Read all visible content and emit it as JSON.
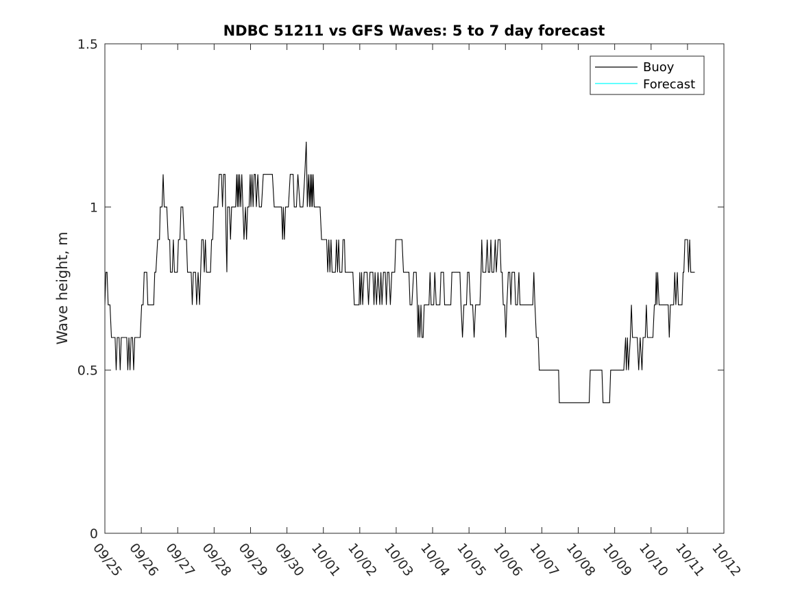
{
  "chart_data": {
    "type": "line",
    "title": "NDBC 51211 vs GFS Waves: 5 to 7 day forecast",
    "xlabel": "",
    "ylabel": "Wave height, m",
    "xlim": [
      0,
      17
    ],
    "ylim": [
      0,
      1.5
    ],
    "x_tick_labels": [
      "09/25",
      "09/26",
      "09/27",
      "09/28",
      "09/29",
      "09/30",
      "10/01",
      "10/02",
      "10/03",
      "10/04",
      "10/05",
      "10/06",
      "10/07",
      "10/08",
      "10/09",
      "10/10",
      "10/11",
      "10/12"
    ],
    "y_ticks": [
      0,
      0.5,
      1,
      1.5
    ],
    "y_tick_labels": [
      "0",
      "0.5",
      "1",
      "1.5"
    ],
    "legend_position": "top-right",
    "series": [
      {
        "name": "Buoy",
        "color": "#000000",
        "points": [
          [
            0.0,
            0.7
          ],
          [
            0.03,
            0.8
          ],
          [
            0.06,
            0.8
          ],
          [
            0.09,
            0.7
          ],
          [
            0.14,
            0.7
          ],
          [
            0.18,
            0.6
          ],
          [
            0.28,
            0.6
          ],
          [
            0.31,
            0.5
          ],
          [
            0.34,
            0.6
          ],
          [
            0.39,
            0.6
          ],
          [
            0.42,
            0.5
          ],
          [
            0.45,
            0.6
          ],
          [
            0.6,
            0.6
          ],
          [
            0.63,
            0.5
          ],
          [
            0.66,
            0.6
          ],
          [
            0.69,
            0.5
          ],
          [
            0.72,
            0.6
          ],
          [
            0.76,
            0.6
          ],
          [
            0.79,
            0.5
          ],
          [
            0.82,
            0.6
          ],
          [
            0.97,
            0.6
          ],
          [
            1.01,
            0.7
          ],
          [
            1.05,
            0.7
          ],
          [
            1.08,
            0.8
          ],
          [
            1.15,
            0.8
          ],
          [
            1.18,
            0.7
          ],
          [
            1.34,
            0.7
          ],
          [
            1.37,
            0.8
          ],
          [
            1.4,
            0.8
          ],
          [
            1.45,
            0.9
          ],
          [
            1.5,
            0.9
          ],
          [
            1.52,
            1.0
          ],
          [
            1.57,
            1.0
          ],
          [
            1.6,
            1.1
          ],
          [
            1.63,
            1.0
          ],
          [
            1.7,
            1.0
          ],
          [
            1.74,
            0.9
          ],
          [
            1.78,
            0.9
          ],
          [
            1.8,
            0.8
          ],
          [
            1.85,
            0.8
          ],
          [
            1.88,
            0.9
          ],
          [
            1.91,
            0.8
          ],
          [
            1.99,
            0.8
          ],
          [
            2.02,
            0.9
          ],
          [
            2.06,
            0.9
          ],
          [
            2.09,
            1.0
          ],
          [
            2.14,
            1.0
          ],
          [
            2.18,
            0.9
          ],
          [
            2.24,
            0.9
          ],
          [
            2.27,
            0.8
          ],
          [
            2.37,
            0.8
          ],
          [
            2.4,
            0.7
          ],
          [
            2.43,
            0.8
          ],
          [
            2.49,
            0.8
          ],
          [
            2.52,
            0.7
          ],
          [
            2.56,
            0.8
          ],
          [
            2.6,
            0.7
          ],
          [
            2.63,
            0.8
          ],
          [
            2.66,
            0.9
          ],
          [
            2.7,
            0.9
          ],
          [
            2.73,
            0.8
          ],
          [
            2.76,
            0.9
          ],
          [
            2.79,
            0.8
          ],
          [
            2.9,
            0.8
          ],
          [
            2.93,
            0.9
          ],
          [
            2.96,
            0.9
          ],
          [
            2.99,
            1.0
          ],
          [
            3.1,
            1.0
          ],
          [
            3.14,
            1.1
          ],
          [
            3.2,
            1.1
          ],
          [
            3.23,
            1.0
          ],
          [
            3.26,
            1.1
          ],
          [
            3.3,
            1.1
          ],
          [
            3.33,
            0.9
          ],
          [
            3.35,
            0.8
          ],
          [
            3.37,
            1.0
          ],
          [
            3.42,
            1.0
          ],
          [
            3.45,
            0.9
          ],
          [
            3.48,
            1.0
          ],
          [
            3.59,
            1.0
          ],
          [
            3.62,
            1.1
          ],
          [
            3.64,
            1.0
          ],
          [
            3.66,
            1.1
          ],
          [
            3.68,
            1.0
          ],
          [
            3.7,
            1.1
          ],
          [
            3.73,
            1.0
          ],
          [
            3.76,
            1.1
          ],
          [
            3.79,
            1.0
          ],
          [
            3.82,
            0.9
          ],
          [
            3.86,
            1.0
          ],
          [
            3.89,
            0.9
          ],
          [
            3.92,
            1.0
          ],
          [
            3.96,
            1.0
          ],
          [
            3.99,
            1.1
          ],
          [
            4.01,
            1.0
          ],
          [
            4.04,
            1.1
          ],
          [
            4.07,
            1.0
          ],
          [
            4.1,
            1.1
          ],
          [
            4.13,
            1.1
          ],
          [
            4.16,
            1.0
          ],
          [
            4.2,
            1.1
          ],
          [
            4.24,
            1.0
          ],
          [
            4.3,
            1.0
          ],
          [
            4.35,
            1.1
          ],
          [
            4.6,
            1.1
          ],
          [
            4.65,
            1.0
          ],
          [
            4.85,
            1.0
          ],
          [
            4.88,
            0.9
          ],
          [
            4.9,
            1.0
          ],
          [
            4.93,
            0.9
          ],
          [
            4.96,
            1.0
          ],
          [
            5.0,
            1.0
          ],
          [
            5.04,
            1.0
          ],
          [
            5.09,
            1.1
          ],
          [
            5.17,
            1.1
          ],
          [
            5.2,
            1.0
          ],
          [
            5.26,
            1.0
          ],
          [
            5.3,
            1.1
          ],
          [
            5.36,
            1.0
          ],
          [
            5.44,
            1.0
          ],
          [
            5.49,
            1.1
          ],
          [
            5.53,
            1.2
          ],
          [
            5.56,
            1.0
          ],
          [
            5.59,
            1.1
          ],
          [
            5.62,
            1.0
          ],
          [
            5.64,
            1.1
          ],
          [
            5.66,
            1.0
          ],
          [
            5.68,
            1.1
          ],
          [
            5.7,
            1.0
          ],
          [
            5.72,
            1.1
          ],
          [
            5.75,
            1.0
          ],
          [
            5.91,
            1.0
          ],
          [
            5.95,
            0.9
          ],
          [
            6.09,
            0.9
          ],
          [
            6.12,
            0.8
          ],
          [
            6.15,
            0.9
          ],
          [
            6.18,
            0.8
          ],
          [
            6.21,
            0.9
          ],
          [
            6.24,
            0.8
          ],
          [
            6.33,
            0.8
          ],
          [
            6.36,
            0.9
          ],
          [
            6.39,
            0.8
          ],
          [
            6.42,
            0.9
          ],
          [
            6.45,
            0.8
          ],
          [
            6.51,
            0.8
          ],
          [
            6.54,
            0.9
          ],
          [
            6.58,
            0.9
          ],
          [
            6.6,
            0.8
          ],
          [
            6.81,
            0.8
          ],
          [
            6.85,
            0.7
          ],
          [
            6.98,
            0.7
          ],
          [
            7.0,
            0.8
          ],
          [
            7.02,
            0.7
          ],
          [
            7.05,
            0.8
          ],
          [
            7.08,
            0.7
          ],
          [
            7.12,
            0.8
          ],
          [
            7.2,
            0.8
          ],
          [
            7.24,
            0.7
          ],
          [
            7.28,
            0.8
          ],
          [
            7.36,
            0.8
          ],
          [
            7.39,
            0.7
          ],
          [
            7.42,
            0.8
          ],
          [
            7.46,
            0.7
          ],
          [
            7.5,
            0.8
          ],
          [
            7.55,
            0.7
          ],
          [
            7.58,
            0.8
          ],
          [
            7.61,
            0.7
          ],
          [
            7.65,
            0.8
          ],
          [
            7.7,
            0.8
          ],
          [
            7.73,
            0.7
          ],
          [
            7.76,
            0.8
          ],
          [
            7.8,
            0.8
          ],
          [
            7.84,
            0.7
          ],
          [
            7.88,
            0.8
          ],
          [
            7.92,
            0.8
          ],
          [
            7.96,
            0.8
          ],
          [
            7.99,
            0.9
          ],
          [
            8.16,
            0.9
          ],
          [
            8.2,
            0.8
          ],
          [
            8.35,
            0.8
          ],
          [
            8.38,
            0.7
          ],
          [
            8.43,
            0.7
          ],
          [
            8.48,
            0.8
          ],
          [
            8.55,
            0.8
          ],
          [
            8.58,
            0.7
          ],
          [
            8.6,
            0.6
          ],
          [
            8.62,
            0.7
          ],
          [
            8.65,
            0.6
          ],
          [
            8.68,
            0.7
          ],
          [
            8.71,
            0.6
          ],
          [
            8.74,
            0.6
          ],
          [
            8.77,
            0.7
          ],
          [
            8.9,
            0.7
          ],
          [
            8.93,
            0.8
          ],
          [
            8.96,
            0.7
          ],
          [
            9.03,
            0.7
          ],
          [
            9.06,
            0.8
          ],
          [
            9.1,
            0.7
          ],
          [
            9.2,
            0.7
          ],
          [
            9.23,
            0.8
          ],
          [
            9.3,
            0.8
          ],
          [
            9.33,
            0.7
          ],
          [
            9.5,
            0.7
          ],
          [
            9.53,
            0.8
          ],
          [
            9.75,
            0.8
          ],
          [
            9.78,
            0.7
          ],
          [
            9.82,
            0.6
          ],
          [
            9.86,
            0.7
          ],
          [
            9.93,
            0.7
          ],
          [
            9.96,
            0.8
          ],
          [
            10.0,
            0.8
          ],
          [
            10.04,
            0.7
          ],
          [
            10.1,
            0.7
          ],
          [
            10.14,
            0.6
          ],
          [
            10.18,
            0.7
          ],
          [
            10.3,
            0.7
          ],
          [
            10.33,
            0.8
          ],
          [
            10.35,
            0.9
          ],
          [
            10.38,
            0.8
          ],
          [
            10.46,
            0.8
          ],
          [
            10.5,
            0.9
          ],
          [
            10.53,
            0.8
          ],
          [
            10.57,
            0.8
          ],
          [
            10.6,
            0.9
          ],
          [
            10.63,
            0.8
          ],
          [
            10.68,
            0.8
          ],
          [
            10.72,
            0.9
          ],
          [
            10.75,
            0.8
          ],
          [
            10.8,
            0.9
          ],
          [
            10.85,
            0.9
          ],
          [
            10.88,
            0.8
          ],
          [
            10.91,
            0.8
          ],
          [
            10.94,
            0.7
          ],
          [
            10.98,
            0.7
          ],
          [
            11.01,
            0.6
          ],
          [
            11.04,
            0.7
          ],
          [
            11.08,
            0.8
          ],
          [
            11.12,
            0.8
          ],
          [
            11.15,
            0.7
          ],
          [
            11.18,
            0.8
          ],
          [
            11.25,
            0.8
          ],
          [
            11.28,
            0.7
          ],
          [
            11.33,
            0.7
          ],
          [
            11.37,
            0.8
          ],
          [
            11.4,
            0.7
          ],
          [
            11.75,
            0.7
          ],
          [
            11.78,
            0.8
          ],
          [
            11.81,
            0.7
          ],
          [
            11.85,
            0.6
          ],
          [
            11.9,
            0.6
          ],
          [
            11.93,
            0.5
          ],
          [
            12.46,
            0.5
          ],
          [
            12.48,
            0.4
          ],
          [
            12.73,
            0.4
          ],
          [
            12.76,
            0.4
          ],
          [
            13.3,
            0.4
          ],
          [
            13.33,
            0.5
          ],
          [
            13.65,
            0.5
          ],
          [
            13.68,
            0.4
          ],
          [
            13.86,
            0.4
          ],
          [
            13.89,
            0.5
          ],
          [
            14.25,
            0.5
          ],
          [
            14.3,
            0.6
          ],
          [
            14.32,
            0.5
          ],
          [
            14.35,
            0.6
          ],
          [
            14.38,
            0.5
          ],
          [
            14.43,
            0.6
          ],
          [
            14.46,
            0.7
          ],
          [
            14.49,
            0.6
          ],
          [
            14.62,
            0.6
          ],
          [
            14.66,
            0.5
          ],
          [
            14.7,
            0.6
          ],
          [
            14.75,
            0.5
          ],
          [
            14.78,
            0.6
          ],
          [
            14.84,
            0.6
          ],
          [
            14.87,
            0.7
          ],
          [
            14.9,
            0.6
          ],
          [
            15.05,
            0.6
          ],
          [
            15.09,
            0.7
          ],
          [
            15.1,
            0.7
          ],
          [
            15.12,
            0.7
          ],
          [
            15.14,
            0.8
          ],
          [
            15.16,
            0.7
          ],
          [
            15.18,
            0.8
          ],
          [
            15.22,
            0.7
          ],
          [
            15.47,
            0.7
          ],
          [
            15.5,
            0.6
          ],
          [
            15.53,
            0.7
          ],
          [
            15.62,
            0.7
          ],
          [
            15.65,
            0.8
          ],
          [
            15.68,
            0.7
          ],
          [
            15.72,
            0.8
          ],
          [
            15.75,
            0.7
          ],
          [
            15.85,
            0.7
          ],
          [
            15.88,
            0.8
          ],
          [
            15.9,
            0.8
          ],
          [
            15.93,
            0.9
          ],
          [
            16.0,
            0.9
          ],
          [
            16.03,
            0.8
          ],
          [
            16.06,
            0.9
          ],
          [
            16.09,
            0.8
          ],
          [
            16.2,
            0.8
          ]
        ]
      },
      {
        "name": "Forecast",
        "color": "#00ffff",
        "points": []
      }
    ]
  }
}
